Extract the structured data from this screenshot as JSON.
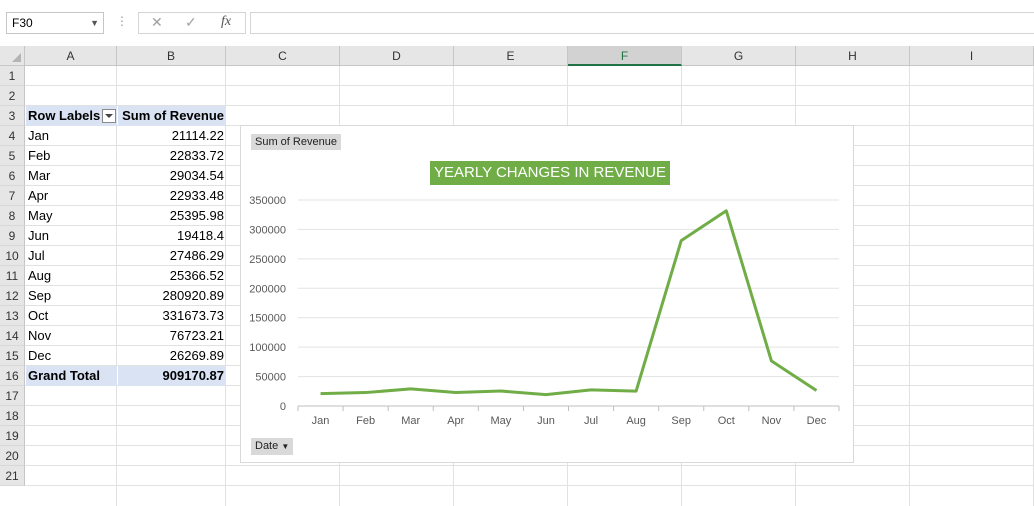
{
  "formula_bar": {
    "cell_ref": "F30",
    "cancel_icon": "✕",
    "enter_icon": "✓",
    "fx_label": "fx",
    "formula": ""
  },
  "columns": [
    "A",
    "B",
    "C",
    "D",
    "E",
    "F",
    "G",
    "H",
    "I"
  ],
  "selected_column": "F",
  "rows": [
    "1",
    "2",
    "3",
    "4",
    "5",
    "6",
    "7",
    "8",
    "9",
    "10",
    "11",
    "12",
    "13",
    "14",
    "15",
    "16",
    "17",
    "18",
    "19",
    "20",
    "21"
  ],
  "pivot": {
    "header": {
      "label_col": "Row Labels",
      "value_col": "Sum of Revenue"
    },
    "rows": [
      {
        "label": "Jan",
        "value": "21114.22"
      },
      {
        "label": "Feb",
        "value": "22833.72"
      },
      {
        "label": "Mar",
        "value": "29034.54"
      },
      {
        "label": "Apr",
        "value": "22933.48"
      },
      {
        "label": "May",
        "value": "25395.98"
      },
      {
        "label": "Jun",
        "value": "19418.4"
      },
      {
        "label": "Jul",
        "value": "27486.29"
      },
      {
        "label": "Aug",
        "value": "25366.52"
      },
      {
        "label": "Sep",
        "value": "280920.89"
      },
      {
        "label": "Oct",
        "value": "331673.73"
      },
      {
        "label": "Nov",
        "value": "76723.21"
      },
      {
        "label": "Dec",
        "value": "26269.89"
      }
    ],
    "total": {
      "label": "Grand Total",
      "value": "909170.87"
    }
  },
  "chart": {
    "value_field_button": "Sum of Revenue",
    "axis_field_button": "Date",
    "axis_field_dropdown": "▼",
    "title_bg": "#70ad47",
    "line_color": "#70ad47"
  },
  "chart_data": {
    "type": "line",
    "title": "YEARLY CHANGES IN REVENUE",
    "categories": [
      "Jan",
      "Feb",
      "Mar",
      "Apr",
      "May",
      "Jun",
      "Jul",
      "Aug",
      "Sep",
      "Oct",
      "Nov",
      "Dec"
    ],
    "series": [
      {
        "values": [
          21114.22,
          22833.72,
          29034.54,
          22933.48,
          25395.98,
          19418.4,
          27486.29,
          25366.52,
          280920.89,
          331673.73,
          76723.21,
          26269.89
        ]
      }
    ],
    "yticks": [
      "0",
      "50000",
      "100000",
      "150000",
      "200000",
      "250000",
      "300000",
      "350000"
    ],
    "ylim": [
      0,
      350000
    ],
    "xlabel": "",
    "ylabel": "",
    "grid": true,
    "legend": "none"
  }
}
